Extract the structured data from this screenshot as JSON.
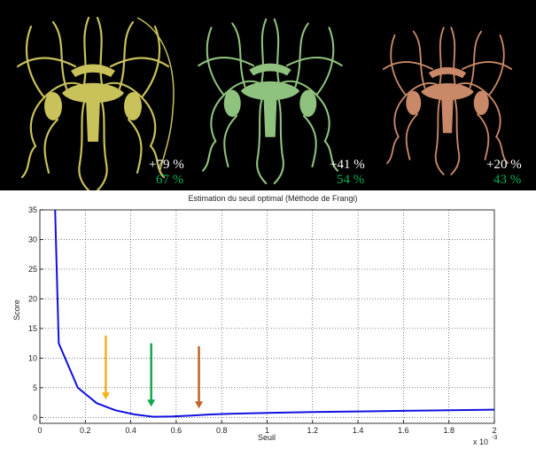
{
  "images": [
    {
      "name": "vessel-yellow",
      "color": "#c9c15a",
      "labels": [
        "+79 %",
        "67 %"
      ]
    },
    {
      "name": "vessel-green",
      "color": "#8fc27e",
      "labels": [
        "+41 %",
        "54 %"
      ]
    },
    {
      "name": "vessel-orange",
      "color": "#c98868",
      "labels": [
        "+20 %",
        "43 %"
      ]
    }
  ],
  "label_colors": [
    "#ffffff",
    "#00b050"
  ],
  "chart_data": {
    "type": "line",
    "title": "Estimation du seuil optimal (Méthode de Frangi)",
    "xlabel": "Seuil",
    "ylabel": "Score",
    "x_multiplier": "x 10",
    "x_multiplier_exp": "-3",
    "xlim": [
      0,
      2
    ],
    "ylim": [
      -1,
      35
    ],
    "xticks": [
      "0",
      "0.2",
      "0.4",
      "0.6",
      "0.8",
      "1",
      "1.2",
      "1.4",
      "1.6",
      "1.8",
      "2"
    ],
    "yticks": [
      "0",
      "5",
      "10",
      "15",
      "20",
      "25",
      "30",
      "35"
    ],
    "grid": true,
    "series": [
      {
        "color": "#1010e0",
        "x": [
          0.067,
          0.083,
          0.167,
          0.25,
          0.333,
          0.417,
          0.5,
          0.583,
          0.667,
          0.75,
          0.833,
          1.0,
          1.2,
          1.4,
          1.6,
          1.8,
          2.0
        ],
        "y": [
          35,
          12.5,
          5.0,
          2.4,
          1.2,
          0.5,
          0.1,
          0.15,
          0.3,
          0.5,
          0.6,
          0.75,
          0.9,
          1.0,
          1.1,
          1.2,
          1.3
        ]
      }
    ],
    "annotations": [
      {
        "type": "arrow",
        "color": "#f4b21b",
        "x": 0.29,
        "y_from": 13.8,
        "y_to": 3.0
      },
      {
        "type": "arrow",
        "color": "#12a84a",
        "x": 0.49,
        "y_from": 12.5,
        "y_to": 1.8
      },
      {
        "type": "arrow",
        "color": "#c0622a",
        "x": 0.7,
        "y_from": 12.0,
        "y_to": 1.5
      }
    ]
  }
}
